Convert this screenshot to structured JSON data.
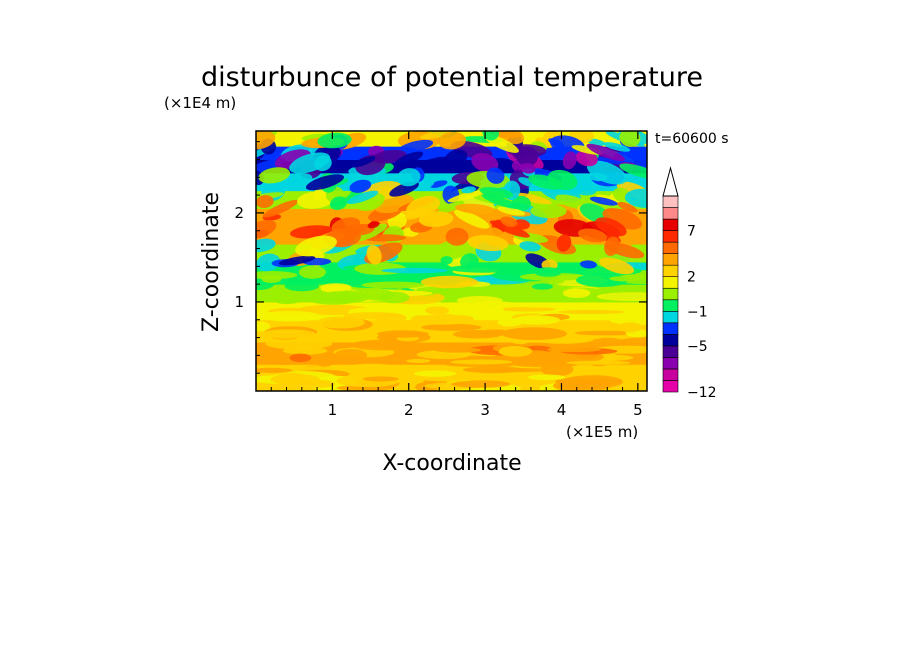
{
  "chart_data": {
    "type": "heatmap",
    "title": "disturbunce of potential temperature",
    "time_label": "t=60600 s",
    "xlabel": "X-coordinate",
    "ylabel": "Z-coordinate",
    "x_unit": "(×1E5 m)",
    "y_unit": "(×1E4 m)",
    "xlim": [
      0,
      5.12
    ],
    "ylim": [
      0,
      2.92
    ],
    "x_ticks": [
      {
        "value": 1,
        "label": "1"
      },
      {
        "value": 2,
        "label": "2"
      },
      {
        "value": 3,
        "label": "3"
      },
      {
        "value": 4,
        "label": "4"
      },
      {
        "value": 5,
        "label": "5"
      }
    ],
    "y_ticks": [
      {
        "value": 1,
        "label": "1"
      },
      {
        "value": 2,
        "label": "2"
      }
    ],
    "colorbar": {
      "levels": [
        -12,
        -11,
        -9,
        -7,
        -5,
        -4,
        -3,
        -1,
        0,
        1,
        2,
        3,
        4,
        6,
        7,
        9,
        11
      ],
      "colors": [
        "#e600a8",
        "#c8009e",
        "#8800b0",
        "#4a0096",
        "#00009c",
        "#0032ff",
        "#00d6e0",
        "#00f060",
        "#9af000",
        "#f4f400",
        "#ffd200",
        "#ffa400",
        "#ff6a00",
        "#ff2a00",
        "#e60000",
        "#ff8888",
        "#ffc0c0"
      ],
      "tick_labels": [
        {
          "value": -12,
          "label": "−12"
        },
        {
          "value": -5,
          "label": "−5"
        },
        {
          "value": -1,
          "label": "−1"
        },
        {
          "value": 2,
          "label": "2"
        },
        {
          "value": 7,
          "label": "7"
        }
      ],
      "extend": "max"
    },
    "field_profile": [
      {
        "z": 0.0,
        "value": 2.5
      },
      {
        "z": 0.3,
        "value": 3.0
      },
      {
        "z": 0.55,
        "value": 3.3
      },
      {
        "z": 0.8,
        "value": 2.3
      },
      {
        "z": 1.0,
        "value": 1.3
      },
      {
        "z": 1.2,
        "value": 0.5
      },
      {
        "z": 1.45,
        "value": -0.6
      },
      {
        "z": 1.65,
        "value": 2.2
      },
      {
        "z": 1.85,
        "value": 4.5
      },
      {
        "z": 2.05,
        "value": 1.5
      },
      {
        "z": 2.25,
        "value": -1.5
      },
      {
        "z": 2.45,
        "value": -3.0
      },
      {
        "z": 2.6,
        "value": -6.5
      },
      {
        "z": 2.75,
        "value": -1.0
      },
      {
        "z": 2.92,
        "value": 3.0
      }
    ]
  }
}
